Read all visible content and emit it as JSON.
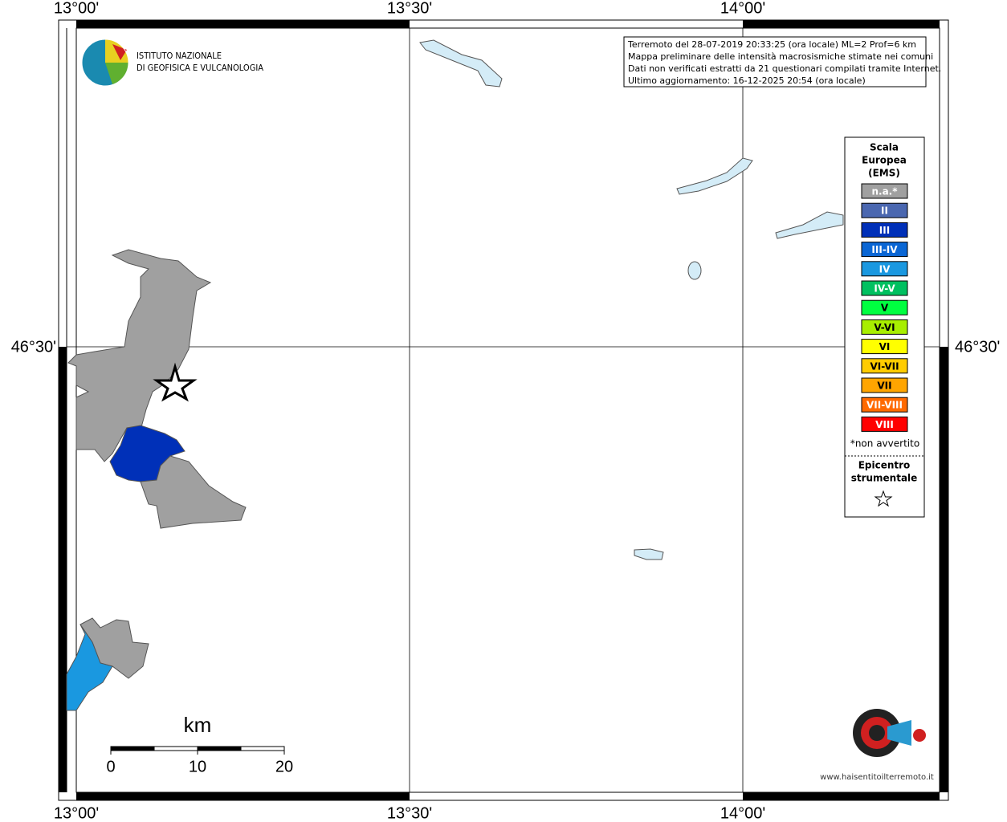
{
  "map": {
    "lon_labels": [
      "13°00'",
      "13°30'",
      "14°00'"
    ],
    "lat_labels": [
      "46°30'"
    ],
    "info_lines": [
      "Terremoto del 28-07-2019 20:33:25 (ora locale) ML=2 Prof=6 km",
      "Mappa preliminare delle intensità macrosismiche stimate nei comuni",
      "Dati non verificati estratti da 21 questionari compilati tramite Internet.",
      "Ultimo aggiornamento: 16-12-2025 20:54 (ora locale)"
    ],
    "institute": [
      "ISTITUTO NAZIONALE",
      "DI GEOFISICA E VULCANOLOGIA"
    ],
    "legend": {
      "title": [
        "Scala",
        "Europea",
        "(EMS)"
      ],
      "items": [
        {
          "label": "n.a.*",
          "color": "#a0a0a0"
        },
        {
          "label": "II",
          "color": "#4a67b0"
        },
        {
          "label": "III",
          "color": "#0030b8"
        },
        {
          "label": "III-IV",
          "color": "#0a66d4"
        },
        {
          "label": "IV",
          "color": "#1a98e0"
        },
        {
          "label": "IV-V",
          "color": "#00c060"
        },
        {
          "label": "V",
          "color": "#00ff40"
        },
        {
          "label": "V-VI",
          "color": "#a8ee00"
        },
        {
          "label": "VI",
          "color": "#ffff00"
        },
        {
          "label": "VI-VII",
          "color": "#ffcc00"
        },
        {
          "label": "VII",
          "color": "#ffa500"
        },
        {
          "label": "VII-VIII",
          "color": "#ff6a00"
        },
        {
          "label": "VIII",
          "color": "#ff0000"
        }
      ],
      "note": "*non avvertito",
      "epicenter_title": [
        "Epicentro",
        "strumentale"
      ]
    },
    "scale": {
      "unit": "km",
      "ticks": [
        0,
        10,
        20
      ]
    },
    "logo_text": "www.haisentitoilterremoto.it"
  }
}
